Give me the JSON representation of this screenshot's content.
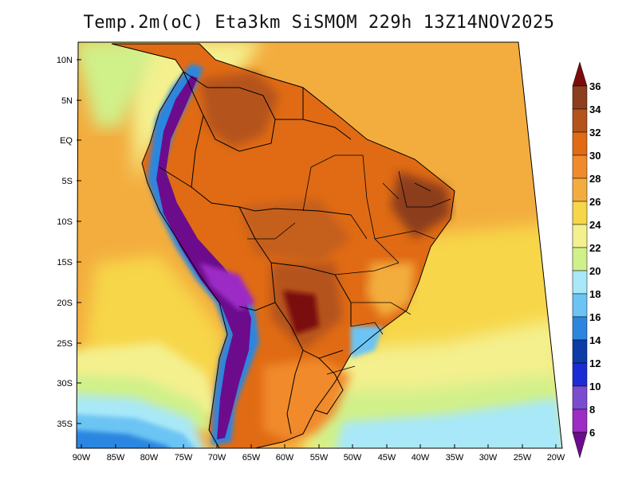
{
  "title": "Temp.2m(oC) Eta3km SiSMOM 229h 13Z14NOV2025",
  "lat_ticks": [
    "10N",
    "5N",
    "EQ",
    "5S",
    "10S",
    "15S",
    "20S",
    "25S",
    "30S",
    "35S"
  ],
  "lon_ticks": [
    "90W",
    "85W",
    "80W",
    "75W",
    "70W",
    "65W",
    "60W",
    "55W",
    "50W",
    "45W",
    "40W",
    "35W",
    "30W",
    "25W",
    "20W"
  ],
  "colorbar": {
    "labels": [
      "36",
      "34",
      "32",
      "30",
      "28",
      "26",
      "24",
      "22",
      "20",
      "18",
      "16",
      "14",
      "12",
      "10",
      "8",
      "6"
    ],
    "colors": [
      "#7a0c0c",
      "#8c3e1e",
      "#b4531c",
      "#e06b14",
      "#f18a2c",
      "#f3ad3e",
      "#f7d64a",
      "#f4f08e",
      "#d0f08a",
      "#a8e8f8",
      "#6cc4f4",
      "#2c86e0",
      "#0c3ca8",
      "#1c2cd4",
      "#7c4cd0",
      "#9c2cc4",
      "#6c0c8c"
    ]
  },
  "colors": {
    "ocean_warm": "#f3ad3e",
    "ocean_mild": "#f7d64a",
    "ocean_cool": "#f4f08e",
    "land_hot": "#e06b14",
    "land_very_hot": "#b4531c",
    "andes_cold": "#6c0c8c",
    "andes_cool": "#2c86e0"
  }
}
